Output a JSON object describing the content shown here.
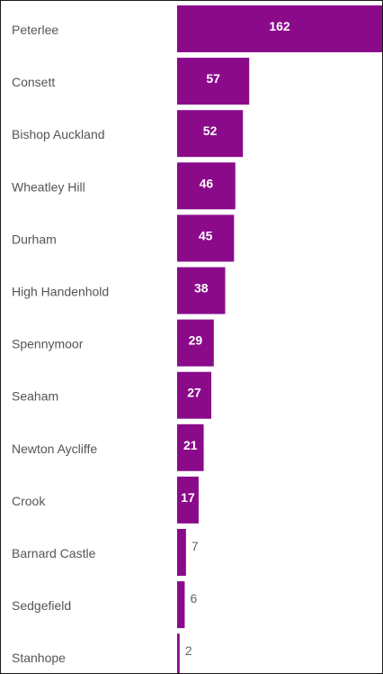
{
  "chart_data": {
    "type": "bar",
    "orientation": "horizontal",
    "bar_color": "#8a0a8a",
    "inside_label_color": "#ffffff",
    "outside_label_color": "#666666",
    "category_label_color": "#555555",
    "categories": [
      "Peterlee",
      "Consett",
      "Bishop Auckland",
      "Wheatley Hill",
      "Durham",
      "High Handenhold",
      "Spennymoor",
      "Seaham",
      "Newton Aycliffe",
      "Crook",
      "Barnard Castle",
      "Sedgefield",
      "Stanhope"
    ],
    "values": [
      162,
      57,
      52,
      46,
      45,
      38,
      29,
      27,
      21,
      17,
      7,
      6,
      2
    ],
    "xlim": [
      0,
      162
    ],
    "grid": false,
    "legend": "none"
  }
}
